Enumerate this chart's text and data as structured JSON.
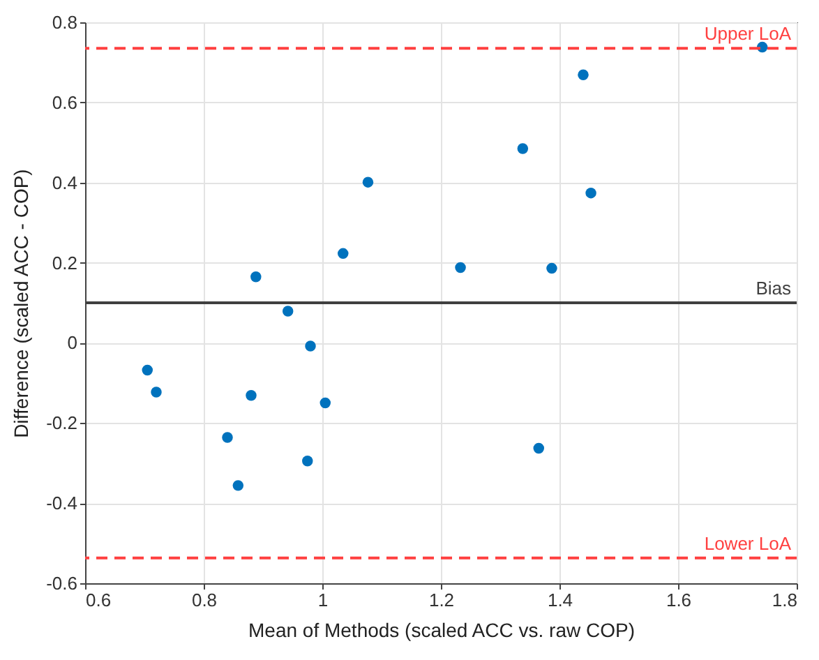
{
  "chart_data": {
    "type": "scatter",
    "xlabel": "Mean of Methods (scaled ACC vs. raw COP)",
    "ylabel": "Difference (scaled ACC - COP)",
    "x": [
      0.705,
      0.72,
      0.84,
      0.858,
      0.88,
      0.888,
      0.942,
      0.975,
      0.98,
      1.005,
      1.035,
      1.077,
      1.233,
      1.338,
      1.365,
      1.387,
      1.44,
      1.453,
      1.742
    ],
    "series": [
      {
        "color": "#0072bd",
        "values": [
          -0.068,
          -0.123,
          -0.236,
          -0.356,
          -0.131,
          0.165,
          0.079,
          -0.295,
          -0.008,
          -0.15,
          0.223,
          0.401,
          0.188,
          0.485,
          -0.263,
          0.186,
          0.669,
          0.374,
          0.738
        ]
      }
    ],
    "marker": "circle",
    "grid": true,
    "xlim": [
      0.6,
      1.8
    ],
    "xticks": [
      0.6,
      0.8,
      1,
      1.2,
      1.4,
      1.6,
      1.8
    ],
    "ylim": [
      -0.6,
      0.8
    ],
    "yticks": [
      -0.6,
      -0.4,
      -0.2,
      0,
      0.2,
      0.4,
      0.6,
      0.8
    ],
    "ref_lines": [
      {
        "axis": "y",
        "value": 0.735,
        "label": "Upper LoA",
        "color": "#ff4040",
        "line_style": "dashed"
      },
      {
        "axis": "y",
        "value": 0.1,
        "label": "Bias",
        "color": "#404040",
        "line_style": "solid"
      },
      {
        "axis": "y",
        "value": -0.537,
        "label": "Lower LoA",
        "color": "#ff4040",
        "line_style": "dashed"
      }
    ]
  }
}
